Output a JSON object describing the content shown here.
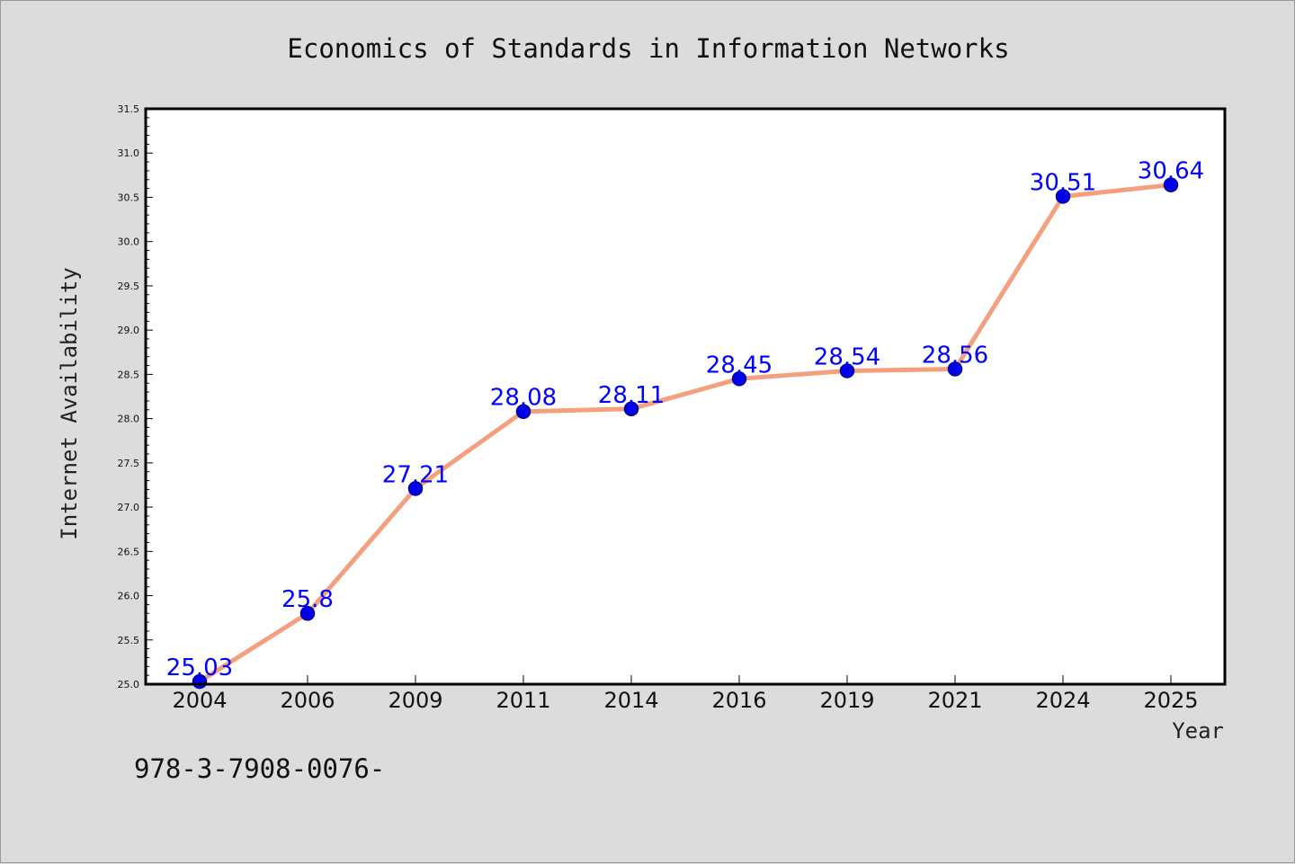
{
  "chart_data": {
    "type": "line",
    "title": "Economics of Standards in Information Networks",
    "xlabel": "Year",
    "ylabel": "Internet Availability",
    "categories": [
      "2004",
      "2006",
      "2009",
      "2011",
      "2014",
      "2016",
      "2019",
      "2021",
      "2024",
      "2025"
    ],
    "series": [
      {
        "values": [
          25.03,
          25.8,
          27.21,
          28.08,
          28.11,
          28.45,
          28.54,
          28.56,
          30.51,
          30.64
        ],
        "labels": [
          "25.03",
          "25.8",
          "27.21",
          "28.08",
          "28.11",
          "28.45",
          "28.54",
          "28.56",
          "30.51",
          "30.64"
        ]
      }
    ],
    "ylim": [
      25.0,
      31.5
    ],
    "yticks": [
      "25.0",
      "25.5",
      "26.0",
      "26.5",
      "27.0",
      "27.5",
      "28.0",
      "28.5",
      "29.0",
      "29.5",
      "30.0",
      "30.5",
      "31.0",
      "31.5"
    ],
    "grid": false,
    "legend": "none",
    "colors": {
      "line": "#f4a07f",
      "marker": "#0000ee",
      "marker_edge": "#00008b",
      "data_label": "#0000ff",
      "background": "#dcdcdc",
      "plot_background": "#ffffff"
    }
  },
  "footer": {
    "text": "978-3-7908-0076-"
  }
}
